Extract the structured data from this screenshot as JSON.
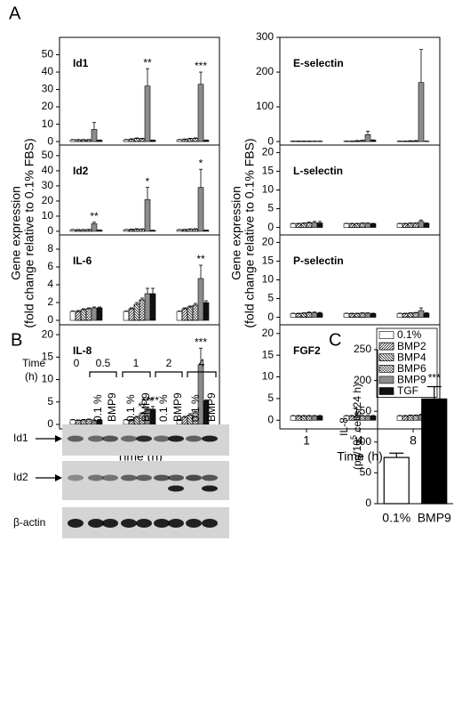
{
  "panels": [
    "A",
    "B",
    "C"
  ],
  "blot": {
    "time_label": "Time",
    "time_unit": "(h)",
    "times": [
      "0",
      "0.5",
      "1",
      "2",
      "4"
    ],
    "lane_labels": [
      "0.1 %",
      "BMP9"
    ],
    "rows": [
      "Id1",
      "Id2",
      "β-actin"
    ]
  },
  "chart_data": [
    {
      "type": "bar",
      "title": "Id1",
      "ylabel": [
        "Gene expression",
        "(fold change relative to 0.1% FBS)"
      ],
      "categories": [
        null,
        null,
        null
      ],
      "ylim": [
        -2,
        60
      ],
      "yticks": [
        0,
        10,
        20,
        30,
        40,
        50
      ],
      "series": [
        {
          "color": "#ffffff",
          "pattern": "none",
          "values": [
            1,
            1,
            1
          ],
          "errors": [
            0.2,
            0.2,
            0.2
          ]
        },
        {
          "color": "#ffffff",
          "pattern": "hatch",
          "values": [
            1,
            1.3,
            1.2
          ],
          "errors": [
            0.2,
            0.3,
            0.3
          ]
        },
        {
          "color": "#ffffff",
          "pattern": "backhatch",
          "values": [
            1,
            1.8,
            1.6
          ],
          "errors": [
            0.2,
            0.3,
            0.3
          ]
        },
        {
          "color": "#ffffff",
          "pattern": "check",
          "values": [
            1,
            1.6,
            1.8
          ],
          "errors": [
            0.2,
            0.3,
            0.3
          ]
        },
        {
          "color": "#8c8c8c",
          "pattern": "none",
          "values": [
            7,
            32,
            33
          ],
          "errors": [
            4,
            10,
            7
          ],
          "annotations": [
            null,
            "**",
            "***"
          ]
        },
        {
          "color": "#111111",
          "pattern": "none",
          "values": [
            0.8,
            0.8,
            0.8
          ],
          "errors": [
            0.1,
            0.1,
            0.1
          ]
        }
      ]
    },
    {
      "type": "bar",
      "title": "Id2",
      "categories": [
        null,
        null,
        null
      ],
      "ylim": [
        -2.4,
        57
      ],
      "yticks": [
        0,
        10,
        20,
        30,
        40,
        50
      ],
      "series": [
        {
          "color": "#ffffff",
          "pattern": "none",
          "values": [
            1,
            1,
            1
          ],
          "errors": [
            0.2,
            0.2,
            0.2
          ]
        },
        {
          "color": "#ffffff",
          "pattern": "hatch",
          "values": [
            1,
            1.2,
            1.1
          ],
          "errors": [
            0.2,
            0.3,
            0.2
          ]
        },
        {
          "color": "#ffffff",
          "pattern": "backhatch",
          "values": [
            1,
            1.4,
            1.3
          ],
          "errors": [
            0.2,
            0.3,
            0.3
          ]
        },
        {
          "color": "#ffffff",
          "pattern": "check",
          "values": [
            1.1,
            1.3,
            1.4
          ],
          "errors": [
            0.2,
            0.3,
            0.3
          ]
        },
        {
          "color": "#8c8c8c",
          "pattern": "none",
          "values": [
            5,
            21,
            29
          ],
          "errors": [
            1,
            8,
            12
          ],
          "annotations": [
            "**",
            "*",
            "*"
          ]
        },
        {
          "color": "#111111",
          "pattern": "none",
          "values": [
            0.8,
            0.6,
            0.7
          ],
          "errors": [
            0.1,
            0.1,
            0.1
          ]
        }
      ]
    },
    {
      "type": "bar",
      "title": "IL-6",
      "categories": [
        null,
        null,
        null
      ],
      "ylim": [
        -0.5,
        9.6
      ],
      "yticks": [
        0,
        2,
        4,
        6,
        8
      ],
      "series": [
        {
          "color": "#ffffff",
          "pattern": "none",
          "values": [
            1,
            1,
            1
          ],
          "errors": [
            0.05,
            0.05,
            0.05
          ]
        },
        {
          "color": "#ffffff",
          "pattern": "hatch",
          "values": [
            1,
            1.3,
            1.3
          ],
          "errors": [
            0.1,
            0.1,
            0.1
          ]
        },
        {
          "color": "#ffffff",
          "pattern": "backhatch",
          "values": [
            1.2,
            1.8,
            1.5
          ],
          "errors": [
            0.1,
            0.2,
            0.1
          ]
        },
        {
          "color": "#ffffff",
          "pattern": "check",
          "values": [
            1.3,
            2.3,
            1.7
          ],
          "errors": [
            0.1,
            0.2,
            0.2
          ]
        },
        {
          "color": "#8c8c8c",
          "pattern": "none",
          "values": [
            1.4,
            3,
            4.7
          ],
          "errors": [
            0.1,
            0.6,
            1.5
          ],
          "annotations": [
            null,
            null,
            "**"
          ]
        },
        {
          "color": "#111111",
          "pattern": "none",
          "values": [
            1.4,
            3,
            2
          ],
          "errors": [
            0.1,
            0.6,
            0.2
          ]
        }
      ]
    },
    {
      "type": "bar",
      "title": "IL-8",
      "xlabel": "Time (h)",
      "categories": [
        "1",
        "4",
        "8"
      ],
      "ylim": [
        -1,
        22.2
      ],
      "yticks": [
        0,
        5,
        10,
        15,
        20
      ],
      "series": [
        {
          "color": "#ffffff",
          "pattern": "none",
          "values": [
            1,
            1,
            1
          ],
          "errors": [
            0.1,
            0.1,
            0.1
          ]
        },
        {
          "color": "#ffffff",
          "pattern": "hatch",
          "values": [
            0.9,
            1,
            1.6
          ],
          "errors": [
            0.1,
            0.1,
            0.2
          ]
        },
        {
          "color": "#ffffff",
          "pattern": "backhatch",
          "values": [
            1,
            1.6,
            2.1
          ],
          "errors": [
            0.1,
            0.2,
            0.3
          ]
        },
        {
          "color": "#ffffff",
          "pattern": "check",
          "values": [
            1.1,
            2.4,
            2.6
          ],
          "errors": [
            0.1,
            0.2,
            0.3
          ],
          "annotations": [
            null,
            "**",
            null
          ]
        },
        {
          "color": "#8c8c8c",
          "pattern": "none",
          "values": [
            0.8,
            3.5,
            13.3
          ],
          "errors": [
            0.2,
            0.3,
            3.7
          ],
          "annotations": [
            null,
            "***",
            "***"
          ]
        },
        {
          "color": "#111111",
          "pattern": "none",
          "values": [
            1,
            3.4,
            5.3
          ],
          "errors": [
            0.1,
            0.6,
            0.2
          ],
          "annotations": [
            null,
            "***",
            null
          ]
        }
      ]
    },
    {
      "type": "bar",
      "title": "E-selectin",
      "ylabel": [
        "Gene expression",
        "(fold change relative to 0.1% FBS)"
      ],
      "categories": [
        null,
        null,
        null
      ],
      "ylim": [
        -10,
        300
      ],
      "yticks": [
        0,
        100,
        200,
        300
      ],
      "series": [
        {
          "color": "#ffffff",
          "pattern": "none",
          "values": [
            1,
            1,
            1
          ],
          "errors": [
            0.5,
            0.5,
            0.5
          ]
        },
        {
          "color": "#ffffff",
          "pattern": "hatch",
          "values": [
            1,
            1,
            1
          ],
          "errors": [
            0.5,
            0.5,
            0.5
          ]
        },
        {
          "color": "#ffffff",
          "pattern": "backhatch",
          "values": [
            1,
            2,
            1.5
          ],
          "errors": [
            0.5,
            1,
            1
          ]
        },
        {
          "color": "#ffffff",
          "pattern": "check",
          "values": [
            1,
            3,
            2
          ],
          "errors": [
            0.5,
            1,
            1
          ]
        },
        {
          "color": "#8c8c8c",
          "pattern": "none",
          "values": [
            1,
            20,
            170
          ],
          "errors": [
            0.5,
            10,
            95
          ]
        },
        {
          "color": "#111111",
          "pattern": "none",
          "values": [
            1,
            4,
            1
          ],
          "errors": [
            0.5,
            1,
            0.5
          ]
        }
      ]
    },
    {
      "type": "bar",
      "title": "L-selectin",
      "categories": [
        null,
        null,
        null
      ],
      "ylim": [
        -2,
        22
      ],
      "yticks": [
        0,
        5,
        10,
        15,
        20
      ],
      "series": [
        {
          "color": "#ffffff",
          "pattern": "none",
          "values": [
            1,
            1,
            1
          ],
          "errors": [
            0.1,
            0.1,
            0.1
          ]
        },
        {
          "color": "#ffffff",
          "pattern": "hatch",
          "values": [
            1,
            1,
            1
          ],
          "errors": [
            0.1,
            0.1,
            0.1
          ]
        },
        {
          "color": "#ffffff",
          "pattern": "backhatch",
          "values": [
            1.1,
            1,
            1.1
          ],
          "errors": [
            0.1,
            0.1,
            0.1
          ]
        },
        {
          "color": "#ffffff",
          "pattern": "check",
          "values": [
            1.2,
            1.1,
            1.1
          ],
          "errors": [
            0.2,
            0.1,
            0.1
          ]
        },
        {
          "color": "#8c8c8c",
          "pattern": "none",
          "values": [
            1.3,
            1.1,
            1.6
          ],
          "errors": [
            0.3,
            0.1,
            0.4
          ]
        },
        {
          "color": "#111111",
          "pattern": "none",
          "values": [
            1.2,
            1,
            1.1
          ],
          "errors": [
            0.4,
            0.1,
            0.1
          ]
        }
      ]
    },
    {
      "type": "bar",
      "title": "P-selectin",
      "categories": [
        null,
        null,
        null
      ],
      "ylim": [
        -2,
        22
      ],
      "yticks": [
        0,
        5,
        10,
        15,
        20
      ],
      "series": [
        {
          "color": "#ffffff",
          "pattern": "none",
          "values": [
            1,
            1,
            1
          ],
          "errors": [
            0.1,
            0.1,
            0.1
          ]
        },
        {
          "color": "#ffffff",
          "pattern": "hatch",
          "values": [
            1,
            1,
            1
          ],
          "errors": [
            0.1,
            0.1,
            0.1
          ]
        },
        {
          "color": "#ffffff",
          "pattern": "backhatch",
          "values": [
            1.1,
            1,
            1.1
          ],
          "errors": [
            0.1,
            0.1,
            0.1
          ]
        },
        {
          "color": "#ffffff",
          "pattern": "check",
          "values": [
            1.2,
            1.1,
            1.2
          ],
          "errors": [
            0.2,
            0.1,
            0.1
          ]
        },
        {
          "color": "#8c8c8c",
          "pattern": "none",
          "values": [
            1.2,
            1.1,
            1.8
          ],
          "errors": [
            0.2,
            0.1,
            0.7
          ]
        },
        {
          "color": "#111111",
          "pattern": "none",
          "values": [
            1.1,
            1,
            1.1
          ],
          "errors": [
            0.2,
            0.1,
            0.1
          ]
        }
      ]
    },
    {
      "type": "bar",
      "title": "FGF2",
      "xlabel": "Time (h)",
      "categories": [
        "1",
        "4",
        "8"
      ],
      "ylim": [
        -2,
        22
      ],
      "yticks": [
        0,
        5,
        10,
        15,
        20
      ],
      "legend": "upper right",
      "series": [
        {
          "name": "0.1%",
          "color": "#ffffff",
          "pattern": "none",
          "values": [
            1,
            1,
            1
          ],
          "errors": [
            0.1,
            0.1,
            0.1
          ]
        },
        {
          "name": "BMP2",
          "color": "#ffffff",
          "pattern": "hatch",
          "values": [
            1,
            1,
            1
          ],
          "errors": [
            0.1,
            0.1,
            0.1
          ]
        },
        {
          "name": "BMP4",
          "color": "#ffffff",
          "pattern": "backhatch",
          "values": [
            1,
            1,
            1.1
          ],
          "errors": [
            0.1,
            0.1,
            0.1
          ]
        },
        {
          "name": "BMP6",
          "color": "#ffffff",
          "pattern": "check",
          "values": [
            1,
            1,
            1.1
          ],
          "errors": [
            0.1,
            0.1,
            0.1
          ]
        },
        {
          "name": "BMP9",
          "color": "#8c8c8c",
          "pattern": "none",
          "values": [
            1,
            1,
            1.2
          ],
          "errors": [
            0.1,
            0.1,
            0.2
          ]
        },
        {
          "name": "TGF",
          "color": "#111111",
          "pattern": "none",
          "values": [
            1,
            1,
            1
          ],
          "errors": [
            0.1,
            0.1,
            0.1
          ]
        }
      ]
    },
    {
      "type": "simplebar",
      "ylabel": "IL-8",
      "ylabel_unit": [
        "(pg/10",
        "5",
        " cells/24 h)"
      ],
      "categories": [
        "0.1%",
        "BMP9"
      ],
      "values": [
        75,
        170
      ],
      "errors": [
        7,
        20
      ],
      "colors": [
        "#ffffff",
        "#000000"
      ],
      "annotations": [
        null,
        "***"
      ],
      "ylim": [
        0,
        250
      ],
      "yticks": [
        0,
        50,
        100,
        150,
        200,
        250
      ]
    }
  ]
}
